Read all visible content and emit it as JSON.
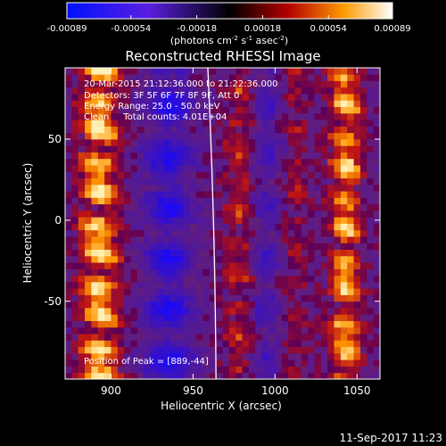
{
  "chart_data": {
    "type": "heatmap",
    "title": "Reconstructed RHESSI Image",
    "xlabel": "Heliocentric X (arcsec)",
    "ylabel": "Heliocentric Y (arcsec)",
    "xlim": [
      872,
      1064
    ],
    "ylim": [
      -98,
      94
    ],
    "xticks": [
      900,
      950,
      1000,
      1050
    ],
    "yticks": [
      50,
      0,
      -50
    ],
    "colorbar": {
      "ticks": [
        "-0.00089",
        "-0.00054",
        "-0.00018",
        "0.00018",
        "0.00054",
        "0.00089"
      ],
      "range": [
        -0.00089,
        0.00089
      ],
      "label_parts": [
        "(photons cm",
        "-2",
        " s",
        "-1",
        " asec",
        "-2",
        ")"
      ]
    },
    "annotations": [
      "20-Mar-2015 21:12:36.000 to 21:22:36.000",
      "Detectors: 3F 5F 6F 7F 8F 9F, Att 0",
      "Energy Range: 25.0 - 50.0 keV",
      "Clean     Total counts: 4.01E+04"
    ],
    "peak_label": "Position of Peak = [889,-44]",
    "peak": [
      889,
      -44
    ],
    "limb": {
      "x_top": 959,
      "x_bottom": 964
    },
    "pixel_size": 4
  },
  "footer": {
    "timestamp": "11-Sep-2017 11:23"
  }
}
